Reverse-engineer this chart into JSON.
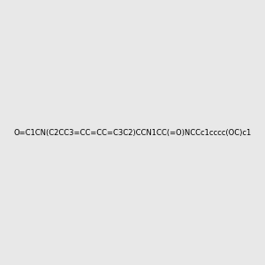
{
  "smiles": "O=C1CN(C2CC3=CC=CC=C3C2)CCN1CC(=O)NCCc1cccc(OC)c1",
  "image_size": 300,
  "background_color": "#e8e8e8",
  "bond_color": "#1a1a1a",
  "atom_colors": {
    "N": "#0000ff",
    "O": "#ff0000",
    "H_on_N": "#008080"
  }
}
